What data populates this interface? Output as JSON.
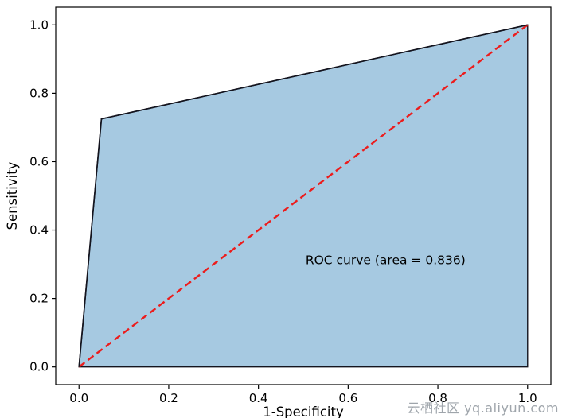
{
  "chart_data": {
    "type": "line",
    "title": "",
    "xlabel": "1-Specificity",
    "ylabel": "Sensitivity",
    "xlim": [
      0.0,
      1.0
    ],
    "ylim": [
      0.0,
      1.0
    ],
    "xticks": [
      0.0,
      0.2,
      0.4,
      0.6,
      0.8,
      1.0
    ],
    "yticks": [
      0.0,
      0.2,
      0.4,
      0.6,
      0.8,
      1.0
    ],
    "grid": false,
    "legend_position": "none",
    "series": [
      {
        "name": "ROC curve",
        "style": "solid-filled",
        "x": [
          0.0,
          0.05,
          1.0
        ],
        "y": [
          0.0,
          0.725,
          1.0
        ],
        "line_color": "#14141e",
        "fill_color": "#a6c9e1"
      },
      {
        "name": "chance diagonal",
        "style": "dashed",
        "x": [
          0.0,
          1.0
        ],
        "y": [
          0.0,
          1.0
        ],
        "line_color": "#ec1c1c"
      }
    ],
    "annotation": {
      "text": "ROC curve (area = 0.836)",
      "x": 0.505,
      "y": 0.3
    },
    "area": 0.836
  },
  "watermark": {
    "text": "云栖社区 yq.aliyun.com",
    "color": "#959ca3"
  }
}
